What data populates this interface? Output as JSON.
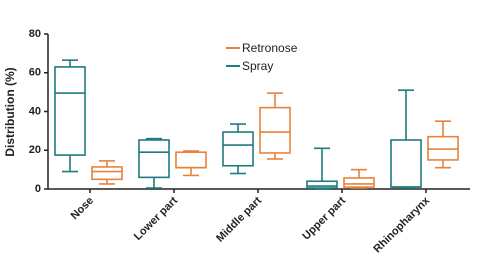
{
  "chart_data": {
    "type": "box",
    "y_label": "Distribution (%)",
    "categories": [
      "Nose",
      "Lower part",
      "Middle part",
      "Upper part",
      "Rhinopharynx"
    ],
    "ylim": [
      0,
      80
    ],
    "yticks": [
      0,
      20,
      40,
      60,
      80
    ],
    "legend": "top-center",
    "series": [
      {
        "name": "Spray",
        "color": "#1f7b80",
        "values": [
          {
            "min": 9,
            "q1": 17.5,
            "median": 49.5,
            "q3": 63,
            "max": 66.5
          },
          {
            "min": 0.5,
            "q1": 6,
            "median": 19,
            "q3": 25.3,
            "max": 26
          },
          {
            "min": 8,
            "q1": 12,
            "median": 22.7,
            "q3": 29.4,
            "max": 33.5
          },
          {
            "min": 0,
            "q1": 0.5,
            "median": 1.5,
            "q3": 4,
            "max": 21
          },
          {
            "min": 0.5,
            "q1": 1,
            "median": 1,
            "q3": 25.3,
            "max": 51
          }
        ]
      },
      {
        "name": "Retronose",
        "color": "#e8823a",
        "values": [
          {
            "min": 2.6,
            "q1": 5,
            "median": 9,
            "q3": 11.4,
            "max": 14.5
          },
          {
            "min": 7,
            "q1": 11,
            "median": 11,
            "q3": 19,
            "max": 19.6
          },
          {
            "min": 15.5,
            "q1": 18.6,
            "median": 29.4,
            "q3": 42,
            "max": 49.5
          },
          {
            "min": 0.5,
            "q1": 1,
            "median": 2.6,
            "q3": 5.7,
            "max": 10
          },
          {
            "min": 11,
            "q1": 15,
            "median": 20.6,
            "q3": 27,
            "max": 35
          }
        ]
      }
    ]
  }
}
